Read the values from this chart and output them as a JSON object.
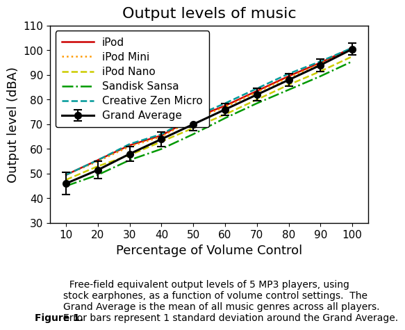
{
  "title": "Output levels of music",
  "xlabel": "Percentage of Volume Control",
  "ylabel": "Output level (dBA)",
  "xlim": [
    5,
    105
  ],
  "ylim": [
    30,
    110
  ],
  "xticks": [
    10,
    20,
    30,
    40,
    50,
    60,
    70,
    80,
    90,
    100
  ],
  "yticks": [
    30,
    40,
    50,
    60,
    70,
    80,
    90,
    100,
    110
  ],
  "x": [
    10,
    20,
    30,
    40,
    50,
    60,
    70,
    80,
    90,
    100
  ],
  "iPod": [
    49.5,
    55.5,
    61.5,
    65.5,
    72.5,
    77.5,
    83.5,
    89.5,
    95.0,
    101.0
  ],
  "iPod_Mini": [
    49.5,
    55.0,
    61.0,
    65.0,
    72.0,
    77.0,
    83.0,
    89.0,
    94.5,
    100.5
  ],
  "iPod_Nano": [
    47.5,
    53.0,
    57.5,
    63.0,
    68.5,
    74.0,
    80.0,
    86.0,
    91.5,
    97.5
  ],
  "Sandisk_Sansa": [
    45.0,
    49.5,
    55.5,
    60.0,
    66.0,
    72.5,
    78.5,
    84.0,
    89.5,
    95.5
  ],
  "Creative_Zen": [
    49.5,
    55.5,
    62.0,
    66.0,
    73.0,
    78.5,
    84.5,
    90.5,
    95.5,
    101.0
  ],
  "Grand_Average": [
    46.0,
    51.5,
    58.0,
    64.0,
    70.0,
    76.0,
    82.0,
    88.0,
    94.0,
    100.5
  ],
  "Grand_Avg_err": [
    4.5,
    3.5,
    3.0,
    3.0,
    2.5,
    2.5,
    2.5,
    2.5,
    2.5,
    2.5
  ],
  "iPod_color": "#cc0000",
  "iPod_Mini_color": "#ff9900",
  "iPod_Nano_color": "#cccc00",
  "Sandisk_color": "#009900",
  "Creative_color": "#009999",
  "Grand_color": "#000000",
  "caption_bold": "Figure 1.",
  "caption_text": "  Free-field equivalent output levels of 5 MP3 players, using\nstock earphones, as a function of volume control settings.  The\nGrand Average is the mean of all music genres across all players.\nError bars represent 1 standard deviation around the Grand Average.",
  "title_fontsize": 16,
  "label_fontsize": 13,
  "tick_fontsize": 11,
  "legend_fontsize": 11,
  "caption_fontsize": 10
}
